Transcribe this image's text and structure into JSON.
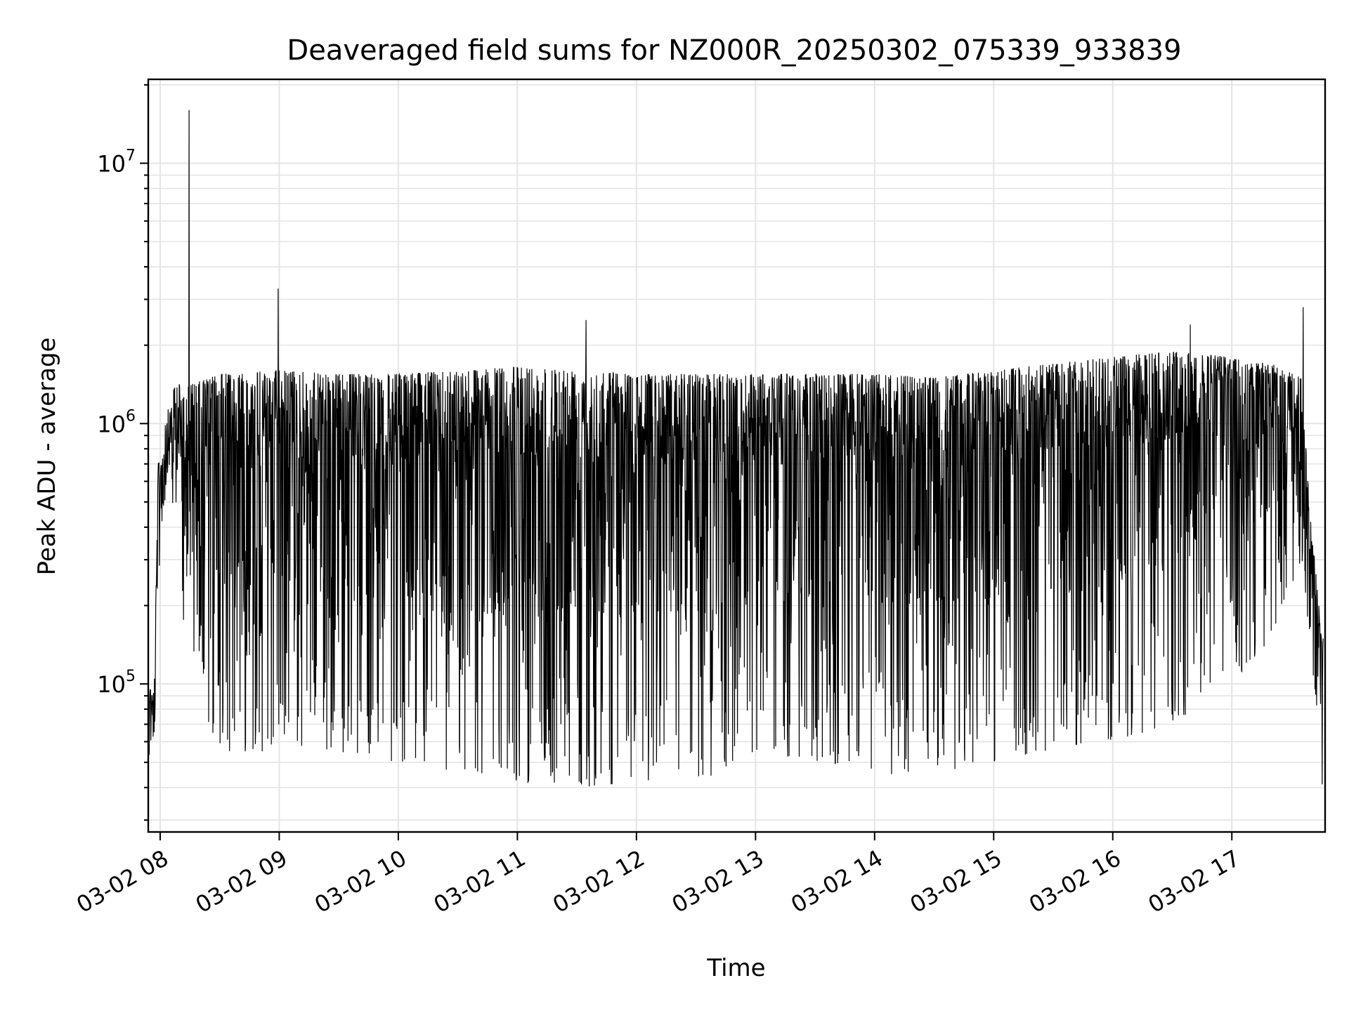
{
  "chart_data": {
    "type": "line",
    "title": "Deaveraged field sums for NZ000R_20250302_075339_933839",
    "xlabel": "Time",
    "ylabel": "Peak ADU - average",
    "yscale": "log",
    "xlim": [
      "2025-03-02T07:54:00",
      "2025-03-02T17:47:00"
    ],
    "ylim": [
      27000,
      21000000
    ],
    "x_ticks": [
      {
        "time": "2025-03-02T08:00:00",
        "label": "03-02 08"
      },
      {
        "time": "2025-03-02T09:00:00",
        "label": "03-02 09"
      },
      {
        "time": "2025-03-02T10:00:00",
        "label": "03-02 10"
      },
      {
        "time": "2025-03-02T11:00:00",
        "label": "03-02 11"
      },
      {
        "time": "2025-03-02T12:00:00",
        "label": "03-02 12"
      },
      {
        "time": "2025-03-02T13:00:00",
        "label": "03-02 13"
      },
      {
        "time": "2025-03-02T14:00:00",
        "label": "03-02 14"
      },
      {
        "time": "2025-03-02T15:00:00",
        "label": "03-02 15"
      },
      {
        "time": "2025-03-02T16:00:00",
        "label": "03-02 16"
      },
      {
        "time": "2025-03-02T17:00:00",
        "label": "03-02 17"
      }
    ],
    "y_ticks": [
      {
        "value": 100000,
        "base": "10",
        "exp": "5"
      },
      {
        "value": 1000000,
        "base": "10",
        "exp": "6"
      },
      {
        "value": 10000000,
        "base": "10",
        "exp": "7"
      }
    ],
    "grid": true,
    "line_color": "#000000",
    "series_envelope": {
      "note_values": "approximate upper/lower envelope of the dense trace",
      "time": [
        "2025-03-02T07:54:00",
        "2025-03-02T07:57:00",
        "2025-03-02T07:59:00",
        "2025-03-02T08:02:00",
        "2025-03-02T08:08:00",
        "2025-03-02T08:14:00",
        "2025-03-02T08:30:00",
        "2025-03-02T09:00:00",
        "2025-03-02T09:30:00",
        "2025-03-02T10:00:00",
        "2025-03-02T10:30:00",
        "2025-03-02T11:00:00",
        "2025-03-02T11:30:00",
        "2025-03-02T12:00:00",
        "2025-03-02T12:30:00",
        "2025-03-02T13:00:00",
        "2025-03-02T13:30:00",
        "2025-03-02T14:00:00",
        "2025-03-02T14:30:00",
        "2025-03-02T15:00:00",
        "2025-03-02T15:30:00",
        "2025-03-02T16:00:00",
        "2025-03-02T16:30:00",
        "2025-03-02T17:00:00",
        "2025-03-02T17:20:00",
        "2025-03-02T17:35:00",
        "2025-03-02T17:40:00",
        "2025-03-02T17:46:00"
      ],
      "upper": [
        100000,
        100000,
        700000,
        1000000,
        1450000,
        1400000,
        1550000,
        1600000,
        1550000,
        1550000,
        1600000,
        1650000,
        1600000,
        1550000,
        1550000,
        1550000,
        1550000,
        1550000,
        1500000,
        1600000,
        1700000,
        1800000,
        1900000,
        1800000,
        1700000,
        1500000,
        400000,
        150000
      ],
      "lower": [
        70000,
        60000,
        200000,
        450000,
        450000,
        100000,
        55000,
        55000,
        55000,
        50000,
        45000,
        42000,
        40000,
        42000,
        40000,
        55000,
        50000,
        45000,
        45000,
        50000,
        55000,
        60000,
        70000,
        100000,
        150000,
        300000,
        120000,
        35000
      ]
    },
    "spikes": [
      {
        "time": "2025-03-02T08:14:30",
        "value": 16000000
      },
      {
        "time": "2025-03-02T08:59:30",
        "value": 3300000
      },
      {
        "time": "2025-03-02T11:34:30",
        "value": 2500000
      },
      {
        "time": "2025-03-02T16:39:00",
        "value": 2400000
      },
      {
        "time": "2025-03-02T17:36:00",
        "value": 2800000
      }
    ]
  }
}
